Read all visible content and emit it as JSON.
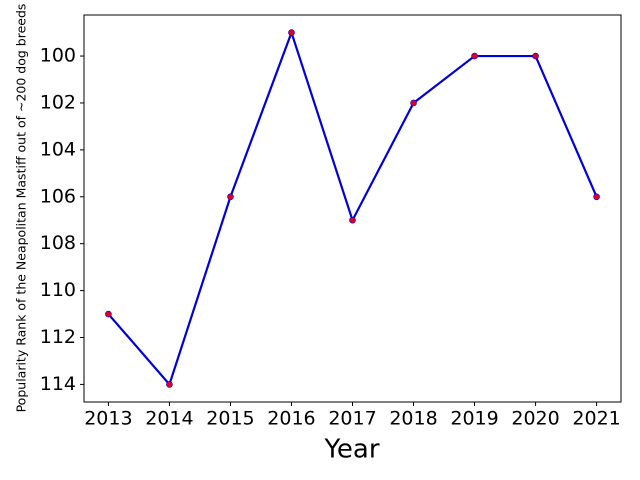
{
  "chart_data": {
    "type": "line",
    "x_label": "Year",
    "y_label": "Popularity Rank of the Neapolitan Mastiff out of ~200 dog breeds",
    "x": [
      2013,
      2014,
      2015,
      2016,
      2017,
      2018,
      2019,
      2020,
      2021
    ],
    "series": [
      {
        "name": "Rank",
        "color": "#0000dd",
        "marker_color": "#dd0022",
        "values": [
          111,
          114,
          106,
          99,
          107,
          102,
          100,
          100,
          106
        ]
      }
    ],
    "xlim": [
      2012.6,
      2021.4
    ],
    "xticks": [
      2013,
      2014,
      2015,
      2016,
      2017,
      2018,
      2019,
      2020,
      2021
    ],
    "ylim": [
      98.25,
      114.75
    ],
    "yticks": [
      100,
      102,
      104,
      106,
      108,
      110,
      112,
      114
    ],
    "y_inverted": true,
    "grid": false
  }
}
